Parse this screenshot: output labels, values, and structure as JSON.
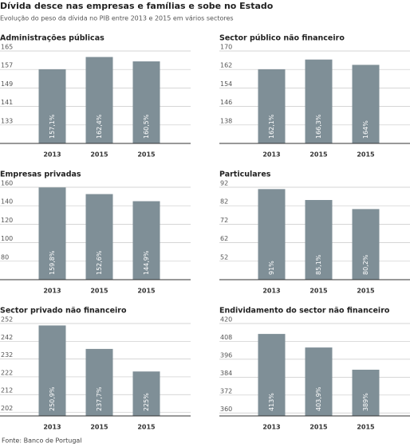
{
  "header": {
    "title": "Dívida desce nas empresas e famílias e sobe no Estado",
    "subtitle": "Evolução do peso da dívida no PIB entre 2013 e 2015 em vários sectores"
  },
  "source": "Fonte: Banco de Portugal",
  "chart_data": [
    {
      "type": "bar",
      "title": "Administrações públicas",
      "categories": [
        "2013",
        "2015",
        "2015"
      ],
      "values": [
        157.1,
        162.4,
        160.5
      ],
      "value_labels": [
        "157,1%",
        "162,4%",
        "160,5%"
      ],
      "color": "#7f8f97",
      "ylim": [
        125,
        165
      ],
      "yticks": [
        165,
        157,
        149,
        141,
        133
      ],
      "grid": true
    },
    {
      "type": "bar",
      "title": "Sector público não financeiro",
      "categories": [
        "2013",
        "2015",
        "2015"
      ],
      "values": [
        162.1,
        166.3,
        164
      ],
      "value_labels": [
        "162,1%",
        "166,3%",
        "164%"
      ],
      "color": "#7f8f97",
      "ylim": [
        130,
        170
      ],
      "yticks": [
        170,
        162,
        154,
        146,
        138
      ],
      "grid": true
    },
    {
      "type": "bar",
      "title": "Empresas privadas",
      "categories": [
        "2013",
        "2015",
        "2015"
      ],
      "values": [
        159.8,
        152.6,
        144.9
      ],
      "value_labels": [
        "159,8%",
        "152,6%",
        "144,9%"
      ],
      "color": "#7f8f97",
      "ylim": [
        60,
        160
      ],
      "yticks": [
        160,
        140,
        120,
        100,
        80
      ],
      "grid": true
    },
    {
      "type": "bar",
      "title": "Particulares",
      "categories": [
        "2013",
        "2015",
        "2015"
      ],
      "values": [
        91,
        85.1,
        80.2
      ],
      "value_labels": [
        "91%",
        "85,1%",
        "80,2%"
      ],
      "color": "#7f8f97",
      "ylim": [
        42,
        92
      ],
      "yticks": [
        92,
        82,
        72,
        62,
        52
      ],
      "grid": true
    },
    {
      "type": "bar",
      "title": "Sector privado não financeiro",
      "categories": [
        "2013",
        "2015",
        "2015"
      ],
      "values": [
        250.9,
        237.7,
        225
      ],
      "value_labels": [
        "250,9%",
        "237,7%",
        "225%"
      ],
      "color": "#7f8f97",
      "ylim": [
        200,
        252
      ],
      "yticks": [
        252,
        242,
        232,
        222,
        212,
        202
      ],
      "grid": true
    },
    {
      "type": "bar",
      "title": "Endividamento do sector não financeiro",
      "categories": [
        "2013",
        "2015",
        "2015"
      ],
      "values": [
        413,
        403.9,
        389
      ],
      "value_labels": [
        "413%",
        "403,9%",
        "389%"
      ],
      "color": "#7f8f97",
      "ylim": [
        358,
        420
      ],
      "yticks": [
        420,
        408,
        396,
        384,
        372,
        360
      ],
      "grid": true
    }
  ]
}
